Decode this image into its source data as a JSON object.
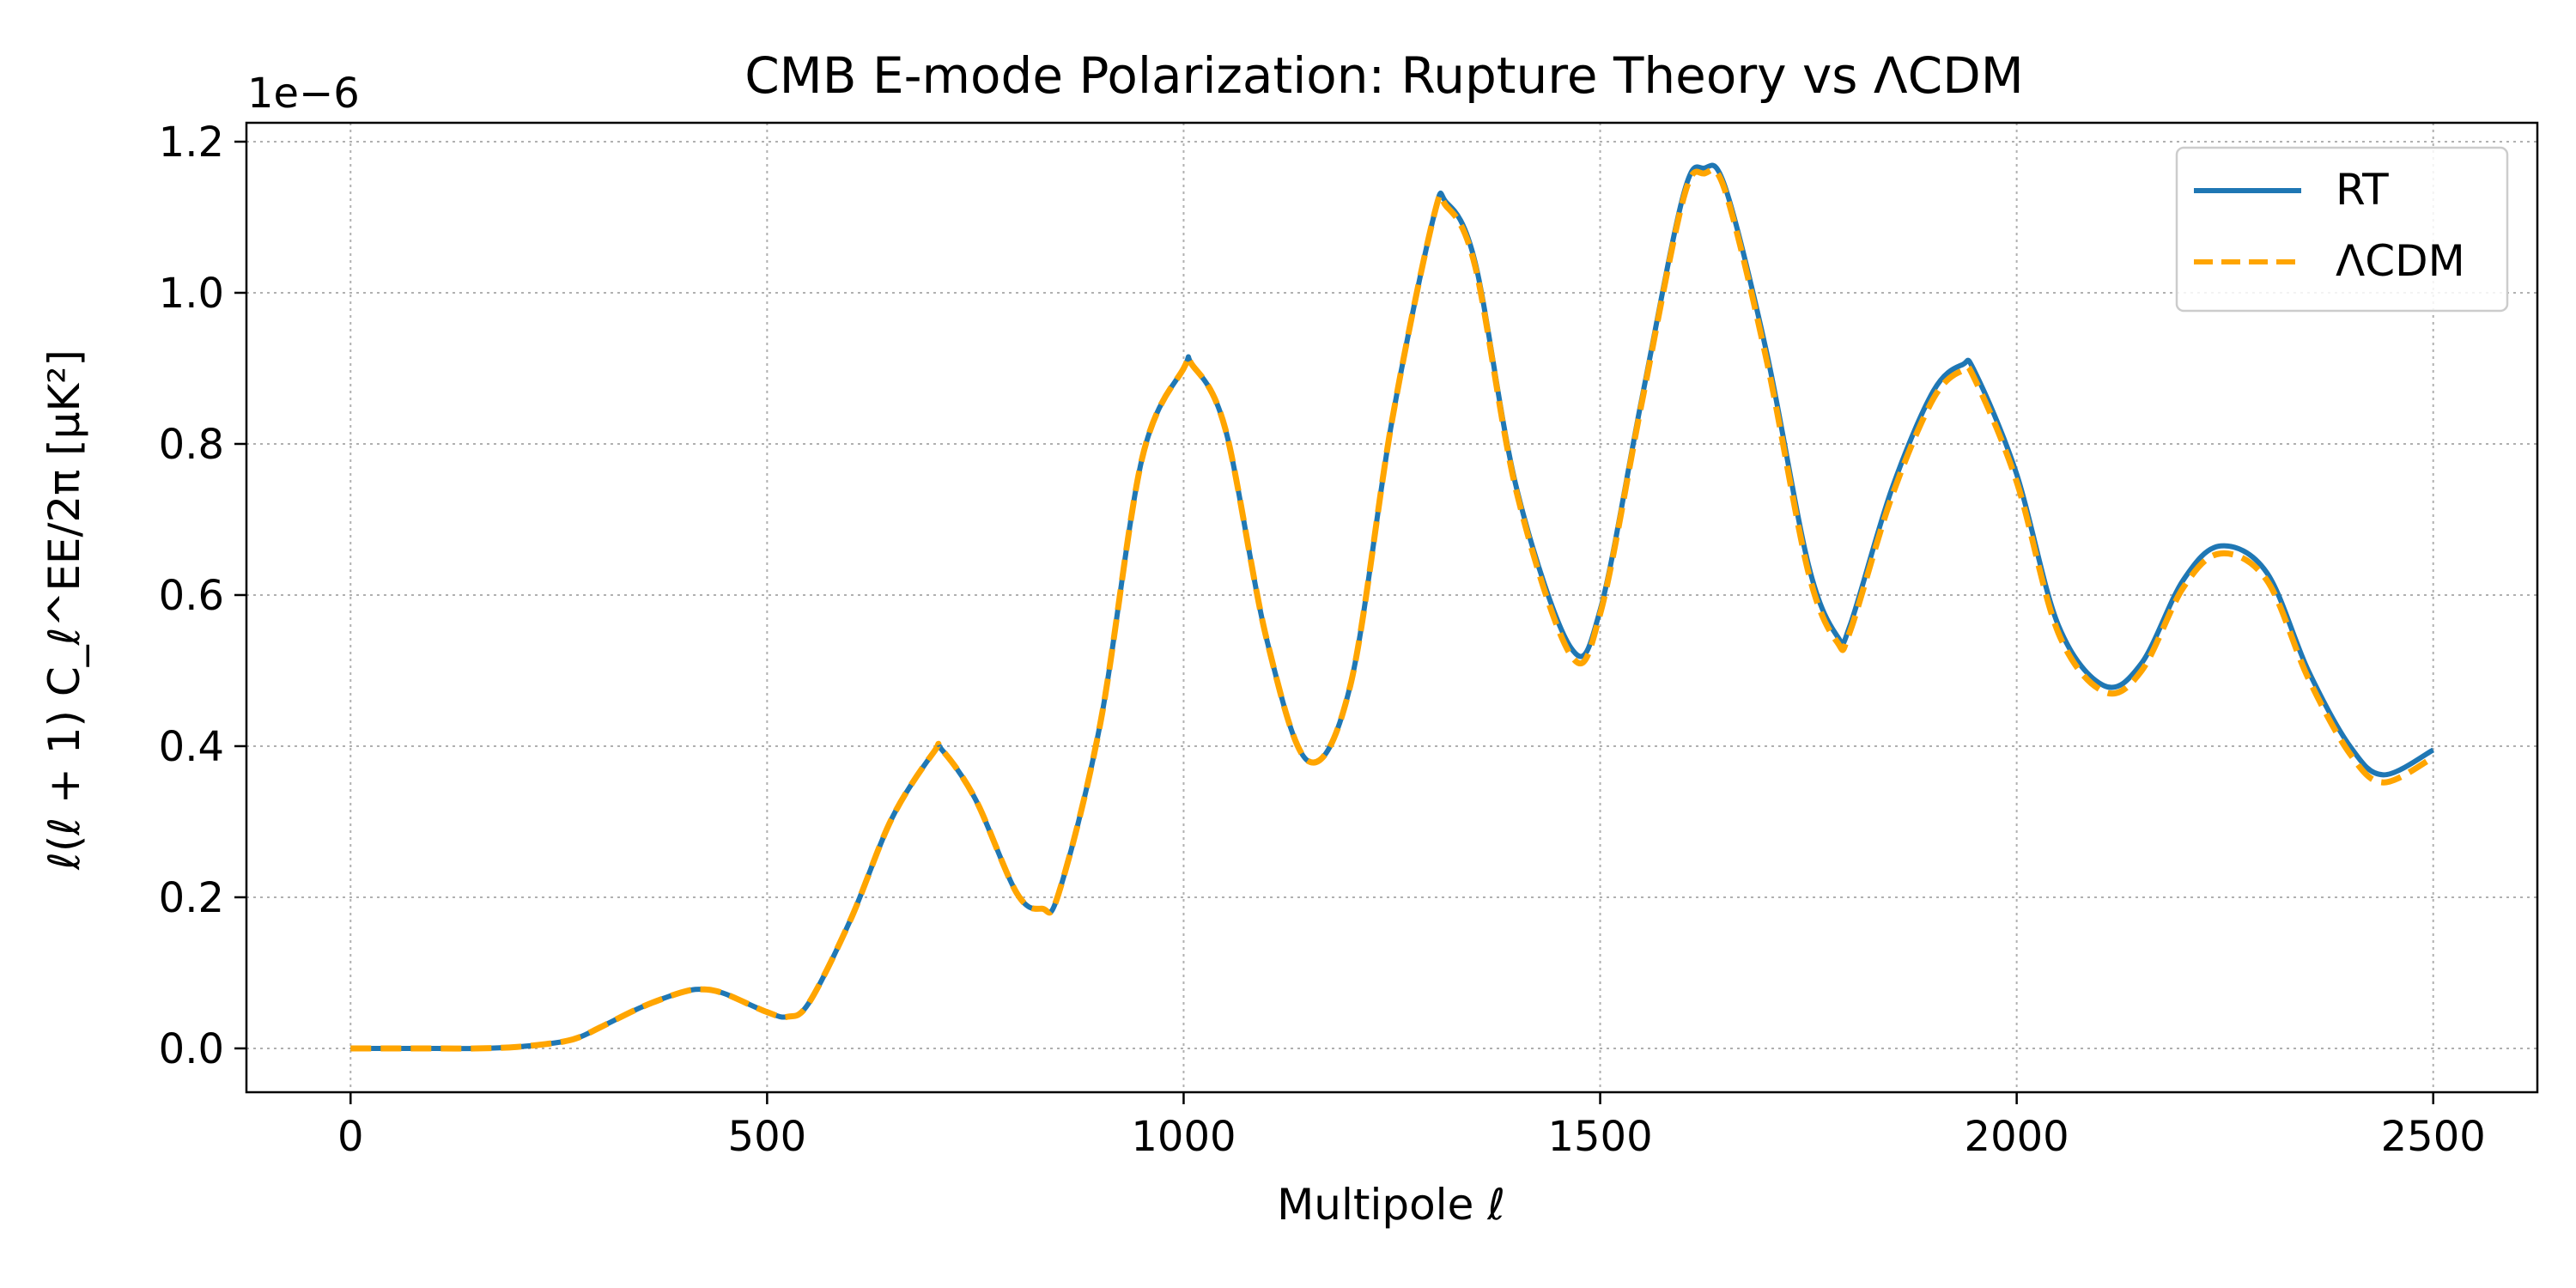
{
  "chart_data": {
    "type": "line",
    "title": "CMB E-mode Polarization: Rupture Theory vs ΛCDM",
    "xlabel": "Multipole ℓ",
    "ylabel": "ℓ(ℓ + 1) C_ℓ^EE/2π [μK²]",
    "y_offset_label": "1e−6",
    "xlim": [
      -125,
      2625
    ],
    "ylim": [
      -0.058,
      1.225
    ],
    "x_ticks": [
      0,
      500,
      1000,
      1500,
      2000,
      2500
    ],
    "x_tick_labels": [
      "0",
      "500",
      "1000",
      "1500",
      "2000",
      "2500"
    ],
    "y_ticks": [
      0.0,
      0.2,
      0.4,
      0.6,
      0.8,
      1.0,
      1.2
    ],
    "y_tick_labels": [
      "0.0",
      "0.2",
      "0.4",
      "0.6",
      "0.8",
      "1.0",
      "1.2"
    ],
    "grid": true,
    "legend_position": "top-right",
    "x": [
      0,
      50,
      100,
      150,
      200,
      250,
      275,
      300,
      350,
      400,
      425,
      450,
      500,
      525,
      550,
      600,
      650,
      700,
      710,
      750,
      800,
      830,
      850,
      900,
      950,
      1000,
      1010,
      1050,
      1100,
      1150,
      1200,
      1250,
      1300,
      1315,
      1350,
      1400,
      1465,
      1500,
      1550,
      1600,
      1625,
      1650,
      1700,
      1750,
      1785,
      1800,
      1850,
      1900,
      1935,
      1950,
      2000,
      2050,
      2105,
      2150,
      2200,
      2245,
      2300,
      2350,
      2400,
      2440,
      2500
    ],
    "series": [
      {
        "name": "RT",
        "color": "#1f77b4",
        "style": "solid",
        "values": [
          0.0,
          0.0,
          0.0,
          0.0,
          0.002,
          0.008,
          0.015,
          0.028,
          0.055,
          0.075,
          0.078,
          0.072,
          0.048,
          0.042,
          0.06,
          0.17,
          0.305,
          0.392,
          0.395,
          0.33,
          0.205,
          0.185,
          0.205,
          0.43,
          0.78,
          0.9,
          0.905,
          0.82,
          0.54,
          0.38,
          0.48,
          0.83,
          1.1,
          1.12,
          1.04,
          0.74,
          0.53,
          0.58,
          0.86,
          1.13,
          1.165,
          1.14,
          0.92,
          0.64,
          0.545,
          0.56,
          0.74,
          0.87,
          0.905,
          0.895,
          0.76,
          0.56,
          0.48,
          0.51,
          0.62,
          0.665,
          0.63,
          0.5,
          0.4,
          0.362,
          0.395
        ]
      },
      {
        "name": "ΛCDM",
        "color": "#ffa500",
        "style": "dashed",
        "values": [
          0.0,
          0.0,
          0.0,
          0.0,
          0.002,
          0.008,
          0.015,
          0.028,
          0.055,
          0.075,
          0.078,
          0.072,
          0.048,
          0.042,
          0.06,
          0.17,
          0.305,
          0.392,
          0.395,
          0.33,
          0.205,
          0.185,
          0.205,
          0.43,
          0.78,
          0.9,
          0.905,
          0.82,
          0.54,
          0.38,
          0.48,
          0.83,
          1.1,
          1.115,
          1.035,
          0.735,
          0.52,
          0.575,
          0.855,
          1.125,
          1.158,
          1.135,
          0.91,
          0.63,
          0.537,
          0.552,
          0.73,
          0.86,
          0.897,
          0.885,
          0.75,
          0.55,
          0.472,
          0.5,
          0.61,
          0.655,
          0.62,
          0.49,
          0.39,
          0.352,
          0.385
        ]
      }
    ]
  }
}
